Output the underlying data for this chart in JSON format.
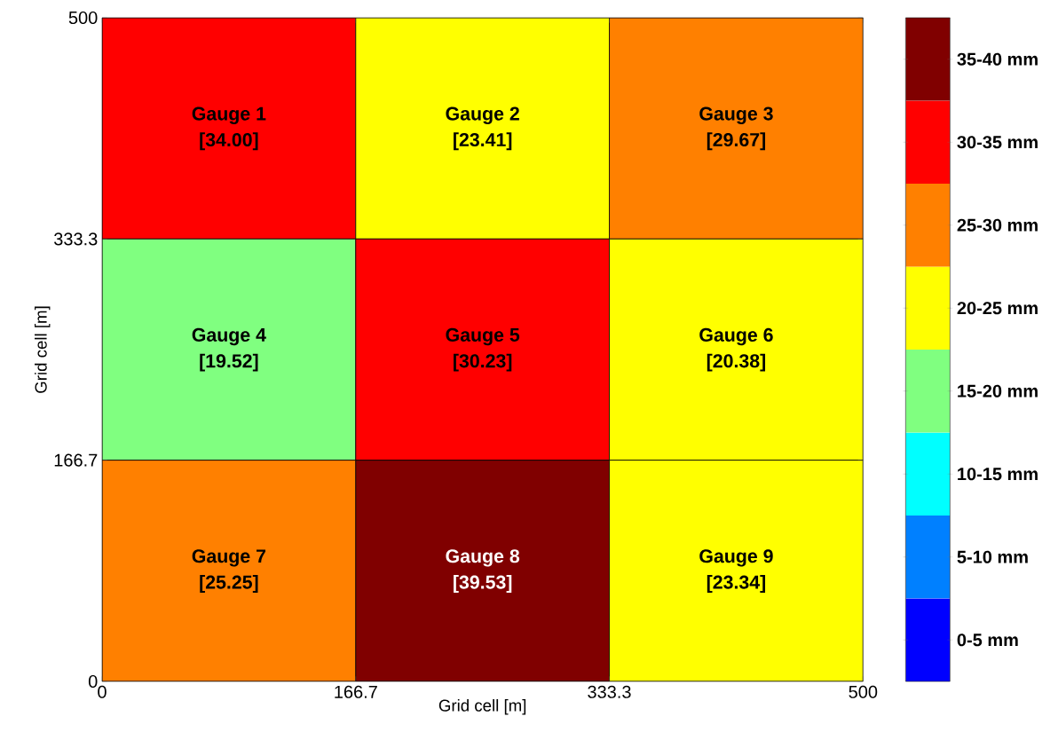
{
  "chart_data": {
    "type": "heatmap",
    "xlabel": "Grid cell [m]",
    "ylabel": "Grid cell [m]",
    "xlim": [
      0,
      500
    ],
    "xticks": [
      0,
      166.7,
      333.3,
      500
    ],
    "ylim": [
      0,
      500
    ],
    "yticks": [
      0,
      166.7,
      333.3,
      500
    ],
    "cells": [
      [
        34.0,
        23.41,
        29.67
      ],
      [
        19.52,
        30.23,
        20.38
      ],
      [
        25.25,
        39.53,
        23.34
      ]
    ],
    "cell_labels": [
      [
        "[34.00]",
        "[23.41]",
        "[29.67]"
      ],
      [
        "[19.52]",
        "[30.23]",
        "[20.38]"
      ],
      [
        "[25.25]",
        "[39.53]",
        "[23.34]"
      ]
    ],
    "annotations": [
      "Gauge 1",
      "Gauge 2",
      "Gauge 3",
      "Gauge 4",
      "Gauge 5",
      "Gauge 6",
      "Gauge 7",
      "Gauge 8",
      "Gauge 9"
    ],
    "clim": [
      0,
      40
    ],
    "cticks": [
      {
        "value": 2.5,
        "label": "0-5 mm"
      },
      {
        "value": 7.5,
        "label": "5-10 mm"
      },
      {
        "value": 12.5,
        "label": "10-15 mm"
      },
      {
        "value": 17.5,
        "label": "15-20 mm"
      },
      {
        "value": 22.5,
        "label": "20-25 mm"
      },
      {
        "value": 27.5,
        "label": "25-30 mm"
      },
      {
        "value": 32.5,
        "label": "30-35 mm"
      },
      {
        "value": 37.5,
        "label": "35-40 mm"
      }
    ]
  }
}
